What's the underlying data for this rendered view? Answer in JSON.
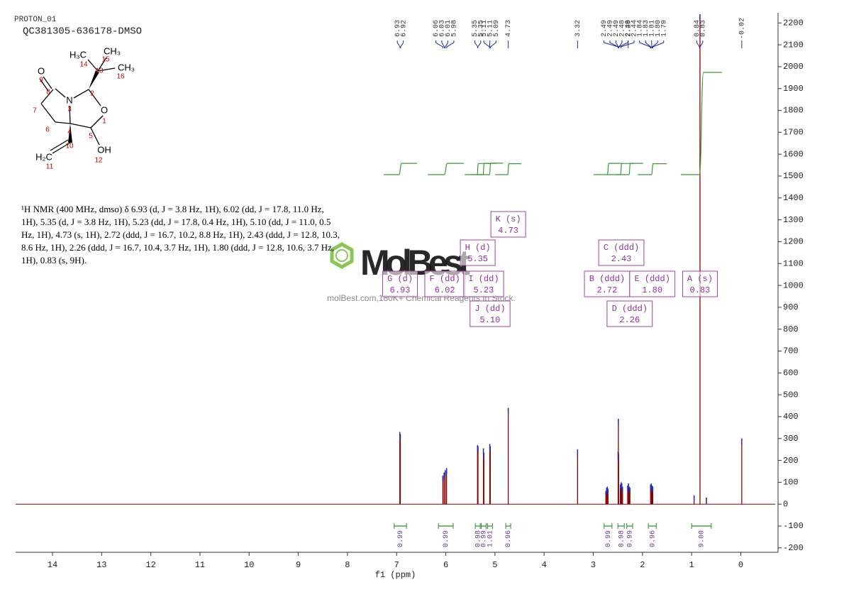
{
  "chart_data": {
    "type": "nmr",
    "title": "PROTON_01",
    "subtitle": "QC381305-636178-DMSO",
    "xlabel": "f1 (ppm)",
    "xlim": [
      14.75,
      -0.7
    ],
    "xticks": [
      14,
      13,
      12,
      11,
      10,
      9,
      8,
      7,
      6,
      5,
      4,
      3,
      2,
      1,
      0
    ],
    "ylim": [
      -220,
      2240
    ],
    "yticks": [
      -200,
      -100,
      0,
      100,
      200,
      300,
      400,
      500,
      600,
      700,
      800,
      900,
      1000,
      1100,
      1200,
      1300,
      1400,
      1500,
      1600,
      1700,
      1800,
      1900,
      2000,
      2100,
      2200
    ],
    "color": "#8b0000",
    "peaks": {
      "x": [
        6.935,
        6.925,
        6.06,
        6.035,
        6.01,
        5.985,
        5.355,
        5.345,
        5.235,
        5.225,
        5.105,
        5.095,
        4.73,
        3.32,
        2.745,
        2.73,
        2.715,
        2.7,
        2.495,
        2.49,
        2.485,
        2.45,
        2.435,
        2.42,
        2.405,
        2.3,
        2.285,
        2.27,
        2.255,
        1.835,
        1.82,
        1.805,
        1.79,
        0.95,
        0.83,
        0.7,
        -0.02
      ],
      "values": [
        330,
        320,
        130,
        145,
        155,
        165,
        270,
        265,
        255,
        235,
        275,
        265,
        440,
        250,
        60,
        75,
        80,
        70,
        240,
        390,
        230,
        90,
        100,
        95,
        80,
        85,
        95,
        80,
        75,
        90,
        95,
        85,
        80,
        40,
        2240,
        30,
        300
      ]
    },
    "peak_labels": [
      6.93,
      6.92,
      6.06,
      6.03,
      6.01,
      5.98,
      5.35,
      5.35,
      5.11,
      5.11,
      5.09,
      4.73,
      3.32,
      2.49,
      2.49,
      2.49,
      2.48,
      2.48,
      2.44,
      2.29,
      1.84,
      1.83,
      1.81,
      {
        "value": 1.8,
        "label": "1.80"
      },
      1.79,
      0.84,
      0.83,
      -0.02
    ],
    "integrals": {
      "ranges": [
        [
          7.05,
          6.8
        ],
        [
          6.15,
          5.85
        ],
        [
          5.4,
          5.3
        ],
        [
          5.28,
          5.18
        ],
        [
          5.15,
          5.05
        ],
        [
          4.78,
          4.68
        ],
        [
          2.78,
          2.62
        ],
        [
          2.5,
          2.37
        ],
        [
          2.32,
          2.2
        ],
        [
          1.88,
          1.72
        ],
        [
          1.0,
          0.6
        ]
      ],
      "values": [
        0.99,
        0.99,
        0.98,
        0.99,
        1.01,
        0.96,
        0.99,
        0.98,
        0.99,
        0.96,
        9
      ],
      "value_labels": [
        "0.99",
        "0.99",
        "0.98",
        "0.99",
        "1.01",
        "0.96",
        "0.99",
        "0.98",
        "0.99",
        "0.96",
        "9.00"
      ]
    },
    "multiplets": [
      {
        "name": "A (s)",
        "shift": 0.83
      },
      {
        "name": "B (ddd)",
        "shift": 2.72
      },
      {
        "name": "C (ddd)",
        "shift": 2.43
      },
      {
        "name": "D (ddd)",
        "shift": 2.26
      },
      {
        "name": "E (ddd)",
        "shift": {
          "value": 1.8,
          "label": "1.80"
        }
      },
      {
        "name": "F (dd)",
        "shift": 6.02
      },
      {
        "name": "G (d)",
        "shift": 6.93
      },
      {
        "name": "H (d)",
        "shift": 5.35
      },
      {
        "name": "I (dd)",
        "shift": 5.23
      },
      {
        "name": "J (dd)",
        "shift": {
          "value": 5.1,
          "label": "5.10"
        }
      },
      {
        "name": "K (s)",
        "shift": 4.73
      }
    ]
  },
  "description": "¹H NMR (400 MHz, dmso) δ 6.93 (d, J = 3.8 Hz, 1H), 6.02 (dd, J = 17.8, 11.0 Hz, 1H), 5.35 (d, J = 3.8 Hz, 1H), 5.23 (dd, J = 17.8, 0.4 Hz, 1H), 5.10 (dd, J = 11.0, 0.5 Hz, 1H), 4.73 (s, 1H), 2.72 (ddd, J = 16.7, 10.2, 8.8 Hz, 1H), 2.43 (ddd, J = 12.8, 10.3, 8.6 Hz, 1H), 2.26 (ddd, J = 16.7, 10.4, 3.7 Hz, 1H), 1.80 (ddd, J = 12.8, 10.6, 3.7 Hz, 1H), 0.83 (s, 9H).",
  "structure": {
    "atoms": [
      "O",
      "N",
      "O",
      "OH",
      "H₃C",
      "CH₃",
      "CH₃",
      "H₂C"
    ],
    "locants": [
      9,
      8,
      7,
      6,
      3,
      4,
      5,
      2,
      13,
      14,
      15,
      16,
      1,
      12,
      10,
      11
    ]
  },
  "watermark": {
    "brand": "MolBest",
    "tagline": "molBest.com,180K+ Chemical Reagents In Stock."
  }
}
